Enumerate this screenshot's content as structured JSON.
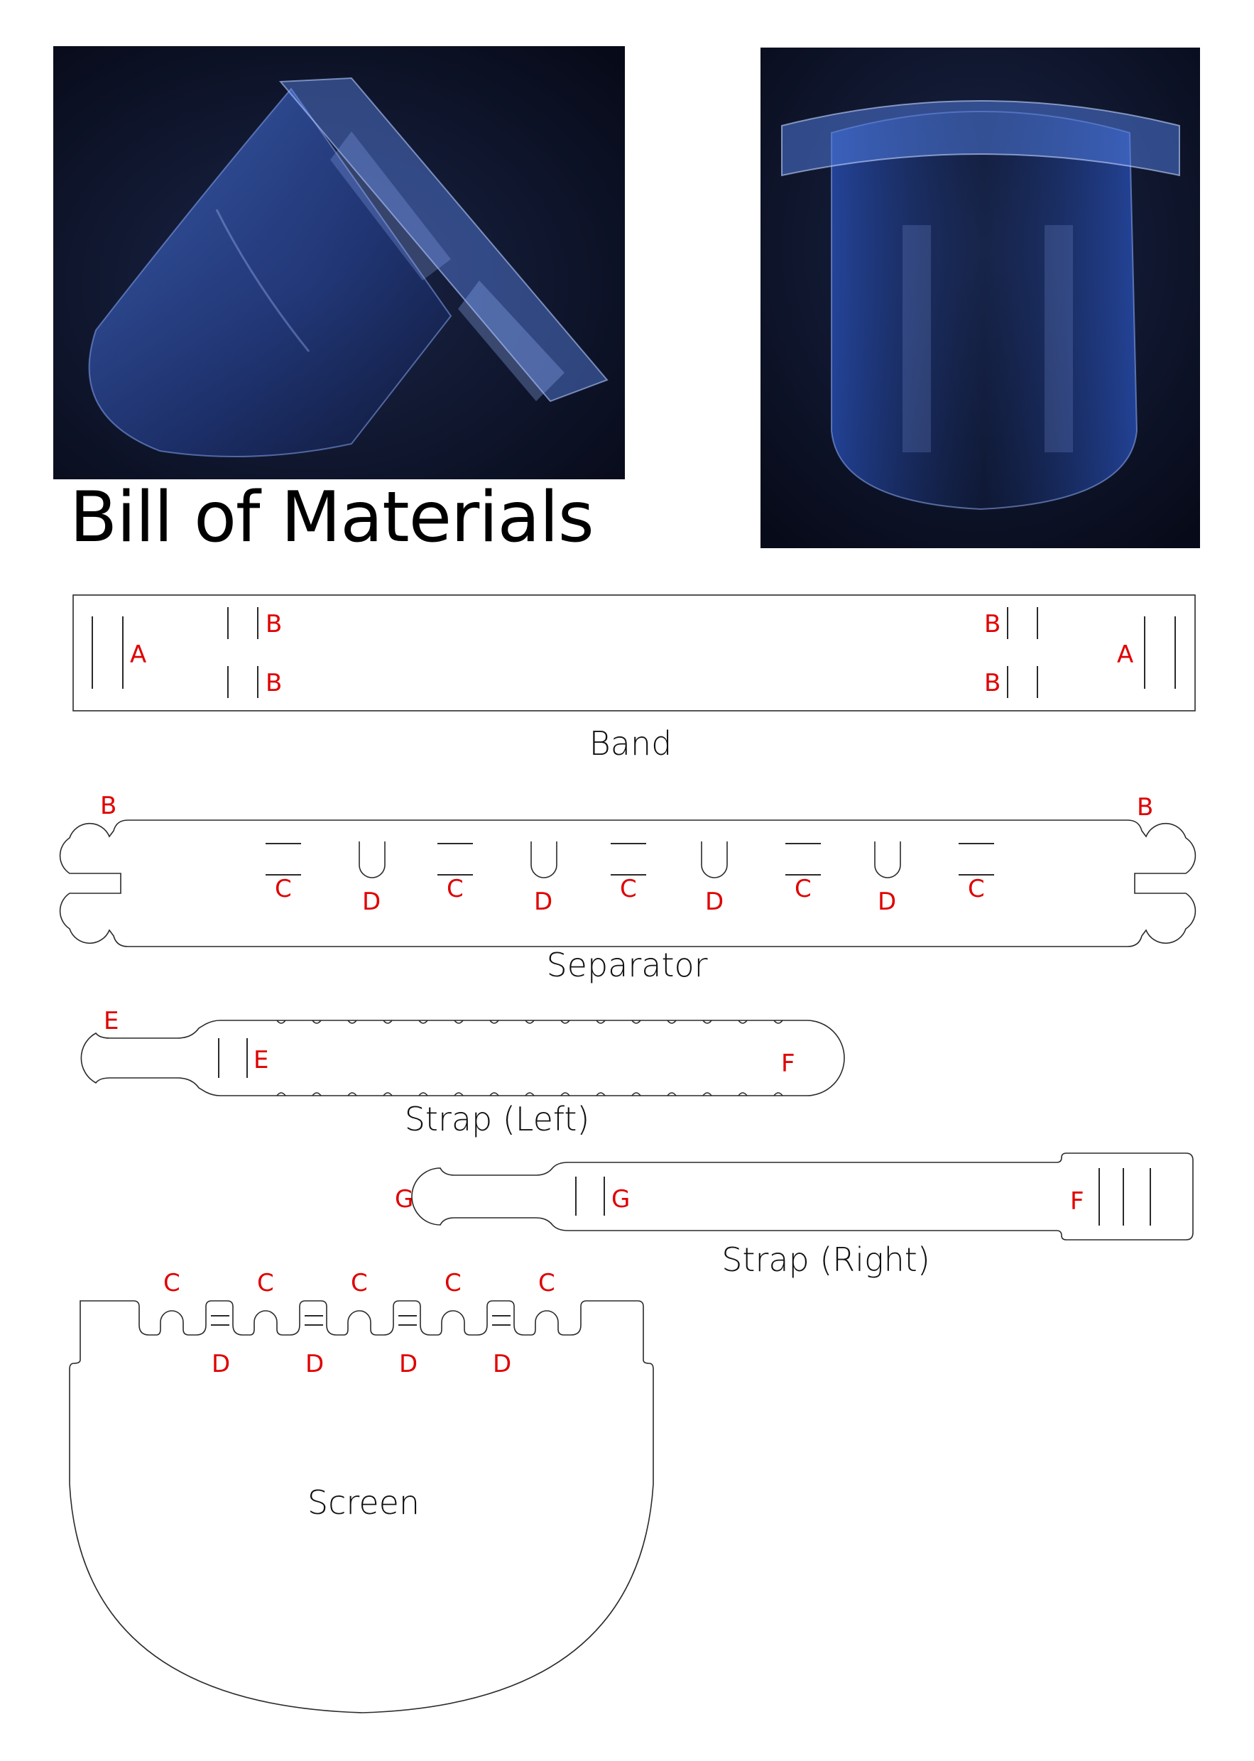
{
  "title": "Bill of Materials",
  "colors": {
    "marker": "#e00000",
    "outline": "#2a2a2a",
    "photo_background": "#0d1226",
    "shield_tint": "#3a63c8"
  },
  "photos": [
    {
      "name": "face-shield-side-photo"
    },
    {
      "name": "face-shield-front-photo"
    }
  ],
  "parts": {
    "band": {
      "label": "Band",
      "markers": {
        "a": "A",
        "b": "B"
      }
    },
    "separator": {
      "label": "Separator",
      "markers": {
        "b": "B",
        "c": "C",
        "d": "D"
      }
    },
    "strap_left": {
      "label": "Strap (Left)",
      "markers": {
        "e": "E",
        "f": "F"
      }
    },
    "strap_right": {
      "label": "Strap (Right)",
      "markers": {
        "g": "G",
        "f": "F"
      }
    },
    "screen": {
      "label": "Screen",
      "markers": {
        "c": "C",
        "d": "D"
      }
    }
  }
}
